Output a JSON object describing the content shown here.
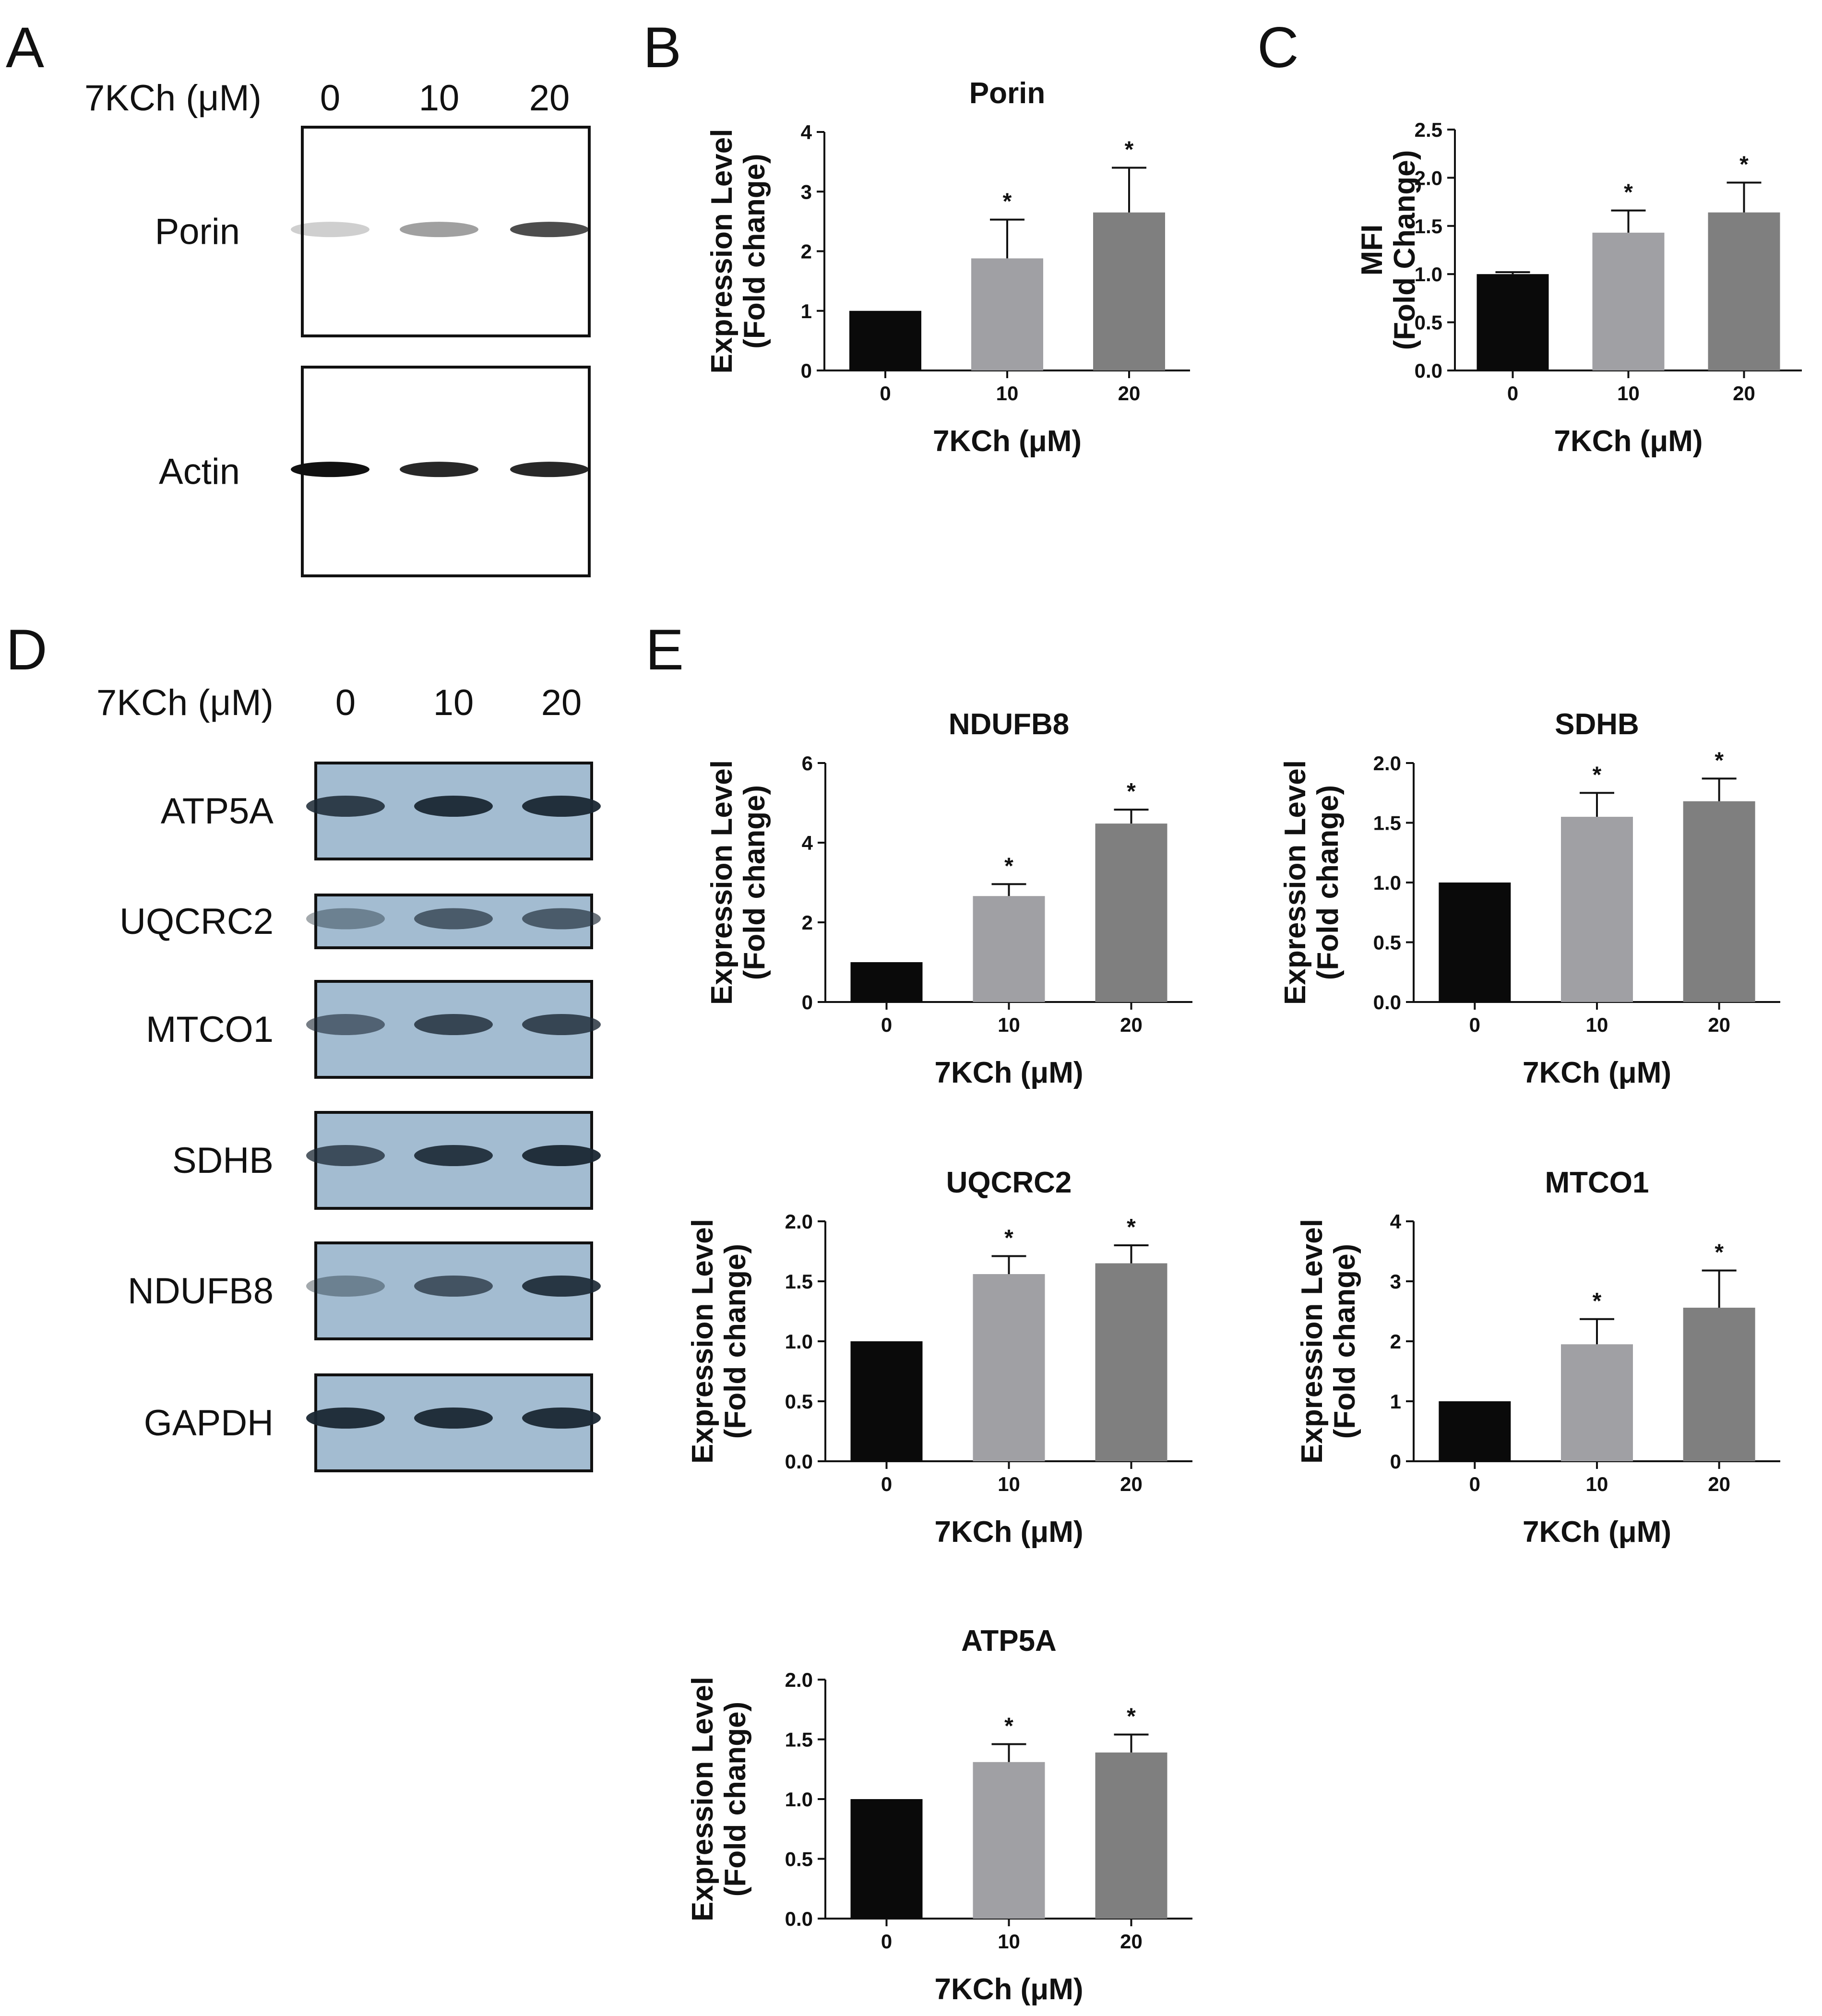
{
  "panels": {
    "A": "A",
    "B": "B",
    "C": "C",
    "D": "D",
    "E": "E"
  },
  "blotA": {
    "condition_label": "7KCh (μM)",
    "lanes": [
      "0",
      "10",
      "20"
    ],
    "bands": [
      {
        "name": "Porin",
        "intensity": [
          0.2,
          0.4,
          0.75
        ]
      },
      {
        "name": "Actin",
        "intensity": [
          1.0,
          0.9,
          0.9
        ]
      }
    ],
    "colors": {
      "background": "#ffffff",
      "band": "#111111",
      "frame": "#111111"
    }
  },
  "blotD": {
    "condition_label": "7KCh (μM)",
    "lanes": [
      "0",
      "10",
      "20"
    ],
    "bands": [
      {
        "name": "ATP5A",
        "intensity": [
          0.85,
          0.95,
          0.95
        ]
      },
      {
        "name": "UQCRC2",
        "intensity": [
          0.4,
          0.65,
          0.65
        ]
      },
      {
        "name": "MTCO1",
        "intensity": [
          0.6,
          0.8,
          0.8
        ]
      },
      {
        "name": "SDHB",
        "intensity": [
          0.75,
          0.9,
          0.95
        ]
      },
      {
        "name": "NDUFB8",
        "intensity": [
          0.4,
          0.7,
          0.9
        ]
      },
      {
        "name": "GAPDH",
        "intensity": [
          0.95,
          0.95,
          0.95
        ]
      }
    ],
    "colors": {
      "background": "#a3bcd1",
      "band": "#1a2733",
      "frame": "#111111"
    }
  },
  "chart_data": [
    {
      "id": "B",
      "type": "bar",
      "title": "Porin",
      "categories": [
        "0",
        "10",
        "20"
      ],
      "values": [
        1.0,
        1.88,
        2.65
      ],
      "errors": [
        0,
        0.65,
        0.75
      ],
      "significance": [
        "",
        "*",
        "*"
      ],
      "xlabel": "7KCh (μM)",
      "ylabel": [
        "Expression Level",
        "(Fold change)"
      ],
      "ylim": [
        0,
        4
      ],
      "yticks": [
        "0",
        "1",
        "2",
        "3",
        "4"
      ],
      "grid": false
    },
    {
      "id": "C",
      "type": "bar",
      "title": "",
      "categories": [
        "0",
        "10",
        "20"
      ],
      "values": [
        1.0,
        1.43,
        1.64
      ],
      "errors": [
        0.02,
        0.23,
        0.31
      ],
      "significance": [
        "",
        "*",
        "*"
      ],
      "xlabel": "7KCh (μM)",
      "ylabel": [
        "MFI",
        "(Fold Change)"
      ],
      "ylim": [
        0,
        2.5
      ],
      "yticks": [
        "0.0",
        "0.5",
        "1.0",
        "1.5",
        "2.0",
        "2.5"
      ],
      "grid": false
    },
    {
      "id": "E1",
      "type": "bar",
      "title": "NDUFB8",
      "categories": [
        "0",
        "10",
        "20"
      ],
      "values": [
        1.0,
        2.66,
        4.48
      ],
      "errors": [
        0,
        0.3,
        0.35
      ],
      "significance": [
        "",
        "*",
        "*"
      ],
      "xlabel": "7KCh (μM)",
      "ylabel": [
        "Expression Level",
        "(Fold change)"
      ],
      "ylim": [
        0,
        6
      ],
      "yticks": [
        "0",
        "2",
        "4",
        "6"
      ],
      "grid": false
    },
    {
      "id": "E2",
      "type": "bar",
      "title": "SDHB",
      "categories": [
        "0",
        "10",
        "20"
      ],
      "values": [
        1.0,
        1.55,
        1.68
      ],
      "errors": [
        0,
        0.2,
        0.19
      ],
      "significance": [
        "",
        "*",
        "*"
      ],
      "xlabel": "7KCh (μM)",
      "ylabel": [
        "Expression Level",
        "(Fold change)"
      ],
      "ylim": [
        0,
        2.0
      ],
      "yticks": [
        "0.0",
        "0.5",
        "1.0",
        "1.5",
        "2.0"
      ],
      "grid": false
    },
    {
      "id": "E3",
      "type": "bar",
      "title": "UQCRC2",
      "categories": [
        "0",
        "10",
        "20"
      ],
      "values": [
        1.0,
        1.56,
        1.65
      ],
      "errors": [
        0,
        0.15,
        0.15
      ],
      "significance": [
        "",
        "*",
        "*"
      ],
      "xlabel": "7KCh (μM)",
      "ylabel": [
        "Expression Level",
        "(Fold change)"
      ],
      "ylim": [
        0,
        2.0
      ],
      "yticks": [
        "0.0",
        "0.5",
        "1.0",
        "1.5",
        "2.0"
      ],
      "grid": false
    },
    {
      "id": "E4",
      "type": "bar",
      "title": "MTCO1",
      "categories": [
        "0",
        "10",
        "20"
      ],
      "values": [
        1.0,
        1.95,
        2.56
      ],
      "errors": [
        0,
        0.42,
        0.62
      ],
      "significance": [
        "",
        "*",
        "*"
      ],
      "xlabel": "7KCh (μM)",
      "ylabel": [
        "Expression Level",
        "(Fold change)"
      ],
      "ylim": [
        0,
        4
      ],
      "yticks": [
        "0",
        "1",
        "2",
        "3",
        "4"
      ],
      "grid": false
    },
    {
      "id": "E5",
      "type": "bar",
      "title": "ATP5A",
      "categories": [
        "0",
        "10",
        "20"
      ],
      "values": [
        1.0,
        1.31,
        1.39
      ],
      "errors": [
        0,
        0.15,
        0.15
      ],
      "significance": [
        "",
        "*",
        "*"
      ],
      "xlabel": "7KCh (μM)",
      "ylabel": [
        "Expression Level",
        "(Fold change)"
      ],
      "ylim": [
        0,
        2.0
      ],
      "yticks": [
        "0.0",
        "0.5",
        "1.0",
        "1.5",
        "2.0"
      ],
      "grid": false
    }
  ],
  "colors": {
    "bar_0": "#0a0a0a",
    "bar_10": "#a0a0a4",
    "bar_20": "#7f7f7f",
    "axis": "#111111"
  }
}
